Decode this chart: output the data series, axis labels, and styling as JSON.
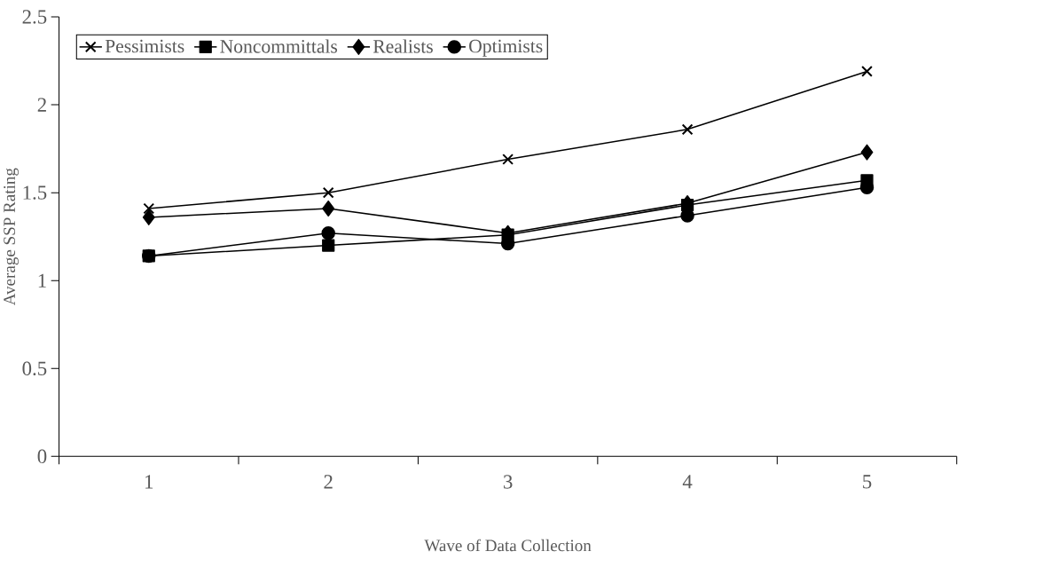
{
  "chart_data": {
    "type": "line",
    "xlabel": "Wave of Data Collection",
    "ylabel": "Average SSP Rating",
    "categories": [
      "1",
      "2",
      "3",
      "4",
      "5"
    ],
    "series": [
      {
        "name": "Pessimists",
        "color": "#000000",
        "marker": "cross",
        "values": [
          1.41,
          1.5,
          1.69,
          1.86,
          2.19
        ]
      },
      {
        "name": "Noncommittals",
        "color": "#000000",
        "marker": "square",
        "values": [
          1.14,
          1.2,
          1.26,
          1.43,
          1.57
        ]
      },
      {
        "name": "Realists",
        "color": "#000000",
        "marker": "diamond",
        "values": [
          1.36,
          1.41,
          1.27,
          1.44,
          1.73
        ]
      },
      {
        "name": "Optimists",
        "color": "#000000",
        "marker": "circle",
        "values": [
          1.14,
          1.27,
          1.21,
          1.37,
          1.53
        ]
      }
    ],
    "ylim": [
      0,
      2.5
    ],
    "yticks": [
      0,
      0.5,
      1,
      1.5,
      2,
      2.5
    ],
    "grid": false,
    "legend": "top left",
    "line_style": "solid"
  }
}
